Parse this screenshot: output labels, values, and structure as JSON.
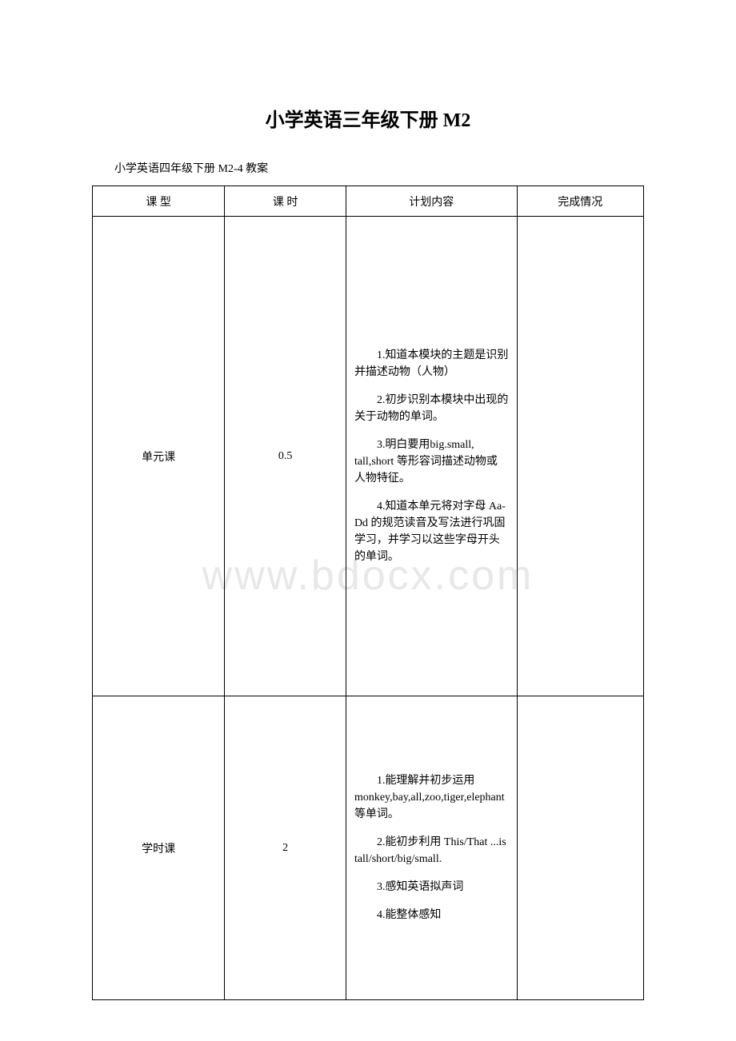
{
  "watermark": "www.bdocx.com",
  "title": "小学英语三年级下册 M2",
  "subtitle": "小学英语四年级下册 M2-4 教案",
  "table": {
    "headers": [
      "课 型",
      "课 时",
      "计划内容",
      "完成情况"
    ],
    "rows": [
      {
        "type": "单元课",
        "hours": "0.5",
        "content": [
          "1.知道本模块的主题是识别并描述动物（人物）",
          "2.初步识别本模块中出现的关于动物的单词。",
          "3.明白要用big.small, tall,short 等形容词描述动物或人物特征。",
          "4.知道本单元将对字母 Aa-Dd 的规范读音及写法进行巩固学习，并学习以这些字母开头的单词。"
        ],
        "status": ""
      },
      {
        "type": "学时课",
        "hours": "2",
        "content": [
          "1.能理解并初步运用monkey,bay,all,zoo,tiger,elephant 等单词。",
          "2.能初步利用 This/That ...is tall/short/big/small.",
          "3.感知英语拟声词",
          "4.能整体感知"
        ],
        "status": ""
      }
    ]
  }
}
